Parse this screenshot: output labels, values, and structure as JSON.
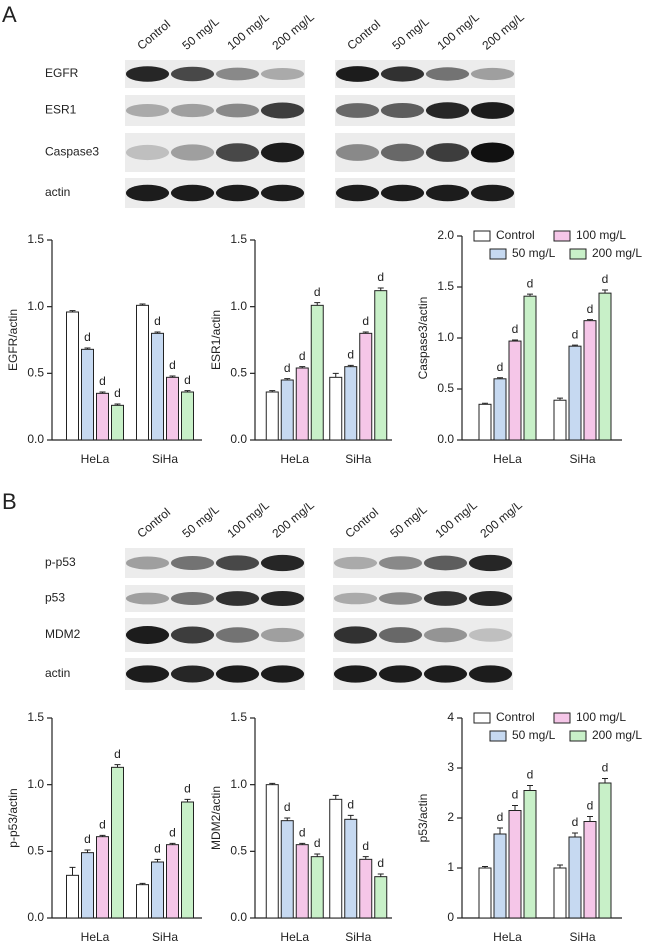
{
  "panels": [
    {
      "label": "A",
      "lanes": [
        "Control",
        "50 mg/L",
        "100 mg/L",
        "200 mg/L"
      ],
      "rows": [
        "EGFR",
        "ESR1",
        "Caspase3",
        "actin"
      ]
    },
    {
      "label": "B",
      "lanes": [
        "Control",
        "50 mg/L",
        "100 mg/L",
        "200 mg/L"
      ],
      "rows": [
        "p-p53",
        "p53",
        "MDM2",
        "actin"
      ]
    }
  ],
  "chart_data": [
    {
      "type": "bar",
      "y_label": "EGFR/actin",
      "categories": [
        "HeLa",
        "SiHa"
      ],
      "ylim": [
        0,
        1.5
      ],
      "yticks": [
        {
          "value": 0,
          "label": "0.0"
        },
        0.5,
        {
          "value": 1,
          "label": "1.0"
        },
        1.5
      ],
      "legend": false,
      "series": [
        {
          "name": "Control",
          "color": "#ffffff",
          "values": [
            0.96,
            1.01
          ],
          "errors": [
            0.01,
            0.01
          ],
          "labels": [
            null,
            null
          ]
        },
        {
          "name": "50 mg/L",
          "color": "#c6d9f1",
          "values": [
            0.68,
            0.8
          ],
          "errors": [
            0.01,
            0.01
          ],
          "labels": [
            "d",
            "d"
          ]
        },
        {
          "name": "100 mg/L",
          "color": "#f5c6e8",
          "values": [
            0.35,
            0.47
          ],
          "errors": [
            0.01,
            0.01
          ],
          "labels": [
            "d",
            "d"
          ]
        },
        {
          "name": "200 mg/L",
          "color": "#c8f0c8",
          "values": [
            0.26,
            0.36
          ],
          "errors": [
            0.01,
            0.01
          ],
          "labels": [
            "d",
            "d"
          ]
        }
      ]
    },
    {
      "type": "bar",
      "y_label": "ESR1/actin",
      "categories": [
        "HeLa",
        "SiHa"
      ],
      "ylim": [
        0,
        1.5
      ],
      "yticks": [
        {
          "value": 0,
          "label": "0.0"
        },
        0.5,
        {
          "value": 1,
          "label": "1.0"
        },
        1.5
      ],
      "legend": false,
      "series": [
        {
          "name": "Control",
          "color": "#ffffff",
          "values": [
            0.36,
            0.47
          ],
          "errors": [
            0.01,
            0.03
          ],
          "labels": [
            null,
            null
          ]
        },
        {
          "name": "50 mg/L",
          "color": "#c6d9f1",
          "values": [
            0.45,
            0.55
          ],
          "errors": [
            0.01,
            0.01
          ],
          "labels": [
            "d",
            "d"
          ]
        },
        {
          "name": "100 mg/L",
          "color": "#f5c6e8",
          "values": [
            0.54,
            0.8
          ],
          "errors": [
            0.01,
            0.01
          ],
          "labels": [
            "d",
            "d"
          ]
        },
        {
          "name": "200 mg/L",
          "color": "#c8f0c8",
          "values": [
            1.01,
            1.12
          ],
          "errors": [
            0.02,
            0.02
          ],
          "labels": [
            "d",
            "d"
          ]
        }
      ]
    },
    {
      "type": "bar",
      "y_label": "Caspase3/actin",
      "categories": [
        "HeLa",
        "SiHa"
      ],
      "ylim": [
        0,
        2
      ],
      "yticks": [
        {
          "value": 0,
          "label": "0.0"
        },
        0.5,
        {
          "value": 1,
          "label": "1.0"
        },
        1.5,
        {
          "value": 2,
          "label": "2.0"
        }
      ],
      "legend": true,
      "series": [
        {
          "name": "Control",
          "color": "#ffffff",
          "values": [
            0.35,
            0.39
          ],
          "errors": [
            0.01,
            0.02
          ],
          "labels": [
            null,
            null
          ]
        },
        {
          "name": "50 mg/L",
          "color": "#c6d9f1",
          "values": [
            0.6,
            0.92
          ],
          "errors": [
            0.01,
            0.01
          ],
          "labels": [
            "d",
            "d"
          ]
        },
        {
          "name": "100 mg/L",
          "color": "#f5c6e8",
          "values": [
            0.97,
            1.17
          ],
          "errors": [
            0.01,
            0.01
          ],
          "labels": [
            "d",
            "d"
          ]
        },
        {
          "name": "200 mg/L",
          "color": "#c8f0c8",
          "values": [
            1.41,
            1.44
          ],
          "errors": [
            0.02,
            0.03
          ],
          "labels": [
            "d",
            "d"
          ]
        }
      ]
    },
    {
      "type": "bar",
      "y_label": "p-p53/actin",
      "categories": [
        "HeLa",
        "SiHa"
      ],
      "ylim": [
        0,
        1.5
      ],
      "yticks": [
        {
          "value": 0,
          "label": "0.0"
        },
        0.5,
        {
          "value": 1,
          "label": "1.0"
        },
        1.5
      ],
      "legend": false,
      "series": [
        {
          "name": "Control",
          "color": "#ffffff",
          "values": [
            0.32,
            0.25
          ],
          "errors": [
            0.06,
            0.01
          ],
          "labels": [
            null,
            null
          ]
        },
        {
          "name": "50 mg/L",
          "color": "#c6d9f1",
          "values": [
            0.49,
            0.42
          ],
          "errors": [
            0.02,
            0.02
          ],
          "labels": [
            "d",
            "d"
          ]
        },
        {
          "name": "100 mg/L",
          "color": "#f5c6e8",
          "values": [
            0.61,
            0.55
          ],
          "errors": [
            0.01,
            0.01
          ],
          "labels": [
            "d",
            "d"
          ]
        },
        {
          "name": "200 mg/L",
          "color": "#c8f0c8",
          "values": [
            1.13,
            0.87
          ],
          "errors": [
            0.02,
            0.02
          ],
          "labels": [
            "d",
            "d"
          ]
        }
      ]
    },
    {
      "type": "bar",
      "y_label": "MDM2/actin",
      "categories": [
        "HeLa",
        "SiHa"
      ],
      "ylim": [
        0,
        1.5
      ],
      "yticks": [
        {
          "value": 0,
          "label": "0.0"
        },
        0.5,
        {
          "value": 1,
          "label": "1.0"
        },
        1.5
      ],
      "legend": false,
      "series": [
        {
          "name": "Control",
          "color": "#ffffff",
          "values": [
            1.0,
            0.89
          ],
          "errors": [
            0.01,
            0.03
          ],
          "labels": [
            null,
            null
          ]
        },
        {
          "name": "50 mg/L",
          "color": "#c6d9f1",
          "values": [
            0.73,
            0.74
          ],
          "errors": [
            0.02,
            0.03
          ],
          "labels": [
            "d",
            "d"
          ]
        },
        {
          "name": "100 mg/L",
          "color": "#f5c6e8",
          "values": [
            0.55,
            0.44
          ],
          "errors": [
            0.01,
            0.02
          ],
          "labels": [
            "d",
            "d"
          ]
        },
        {
          "name": "200 mg/L",
          "color": "#c8f0c8",
          "values": [
            0.46,
            0.31
          ],
          "errors": [
            0.02,
            0.02
          ],
          "labels": [
            "d",
            "d"
          ]
        }
      ]
    },
    {
      "type": "bar",
      "y_label": "p53/actin",
      "categories": [
        "HeLa",
        "SiHa"
      ],
      "ylim": [
        0,
        4
      ],
      "yticks": [
        0,
        1,
        2,
        3,
        4
      ],
      "legend": true,
      "series": [
        {
          "name": "Control",
          "color": "#ffffff",
          "values": [
            1.0,
            1.0
          ],
          "errors": [
            0.03,
            0.06
          ],
          "labels": [
            null,
            null
          ]
        },
        {
          "name": "50 mg/L",
          "color": "#c6d9f1",
          "values": [
            1.68,
            1.62
          ],
          "errors": [
            0.12,
            0.08
          ],
          "labels": [
            "d",
            "d"
          ]
        },
        {
          "name": "100 mg/L",
          "color": "#f5c6e8",
          "values": [
            2.15,
            1.93
          ],
          "errors": [
            0.1,
            0.1
          ],
          "labels": [
            "d",
            "d"
          ]
        },
        {
          "name": "200 mg/L",
          "color": "#c8f0c8",
          "values": [
            2.55,
            2.7
          ],
          "errors": [
            0.1,
            0.09
          ],
          "labels": [
            "d",
            "d"
          ]
        }
      ]
    }
  ]
}
